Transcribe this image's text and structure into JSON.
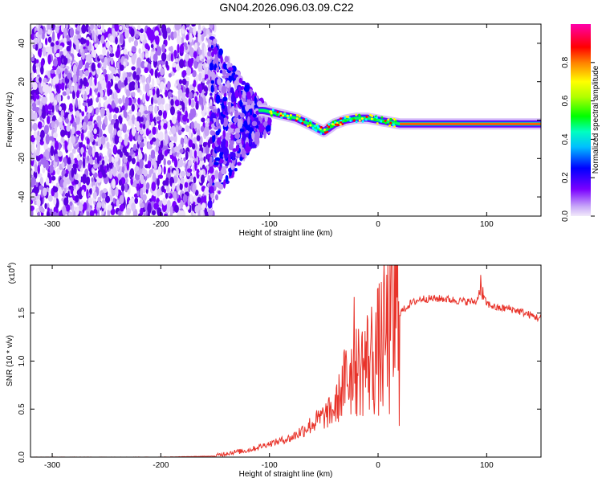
{
  "title": "GN04.2026.096.03.09.C22",
  "chart_data": [
    {
      "type": "heatmap",
      "name": "spectrogram",
      "xlabel": "Height of straight line (km)",
      "ylabel": "Frequency (Hz)",
      "xlim": [
        -320,
        150
      ],
      "ylim": [
        -50,
        50
      ],
      "x_ticks": [
        -300,
        -200,
        -100,
        0,
        100
      ],
      "y_ticks": [
        -40,
        -20,
        0,
        20,
        40
      ],
      "colorbar": {
        "label": "Normalized spectral amplitude",
        "range": [
          0,
          1
        ],
        "ticks": [
          0.0,
          0.2,
          0.4,
          0.6,
          0.8
        ],
        "colors": [
          "#f2eafa",
          "#7a00ff",
          "#0000ff",
          "#00ffff",
          "#00ff00",
          "#ffff00",
          "#ff0000",
          "#ff00aa"
        ]
      },
      "ridge": {
        "x": [
          -105,
          -90,
          -75,
          -60,
          -50,
          -40,
          -30,
          -20,
          -10,
          0,
          10,
          20,
          40,
          60,
          80,
          100,
          120,
          150
        ],
        "y": [
          5,
          3,
          1,
          -3,
          -6,
          -2,
          0,
          1,
          1,
          0,
          -1,
          -2,
          -2,
          -2,
          -2,
          -2,
          -2,
          -2
        ]
      }
    },
    {
      "type": "line",
      "name": "snr",
      "xlabel": "Height of straight line (km)",
      "ylabel": "SNR (10 * v/v)",
      "y_multiplier": "(x10",
      "y_multiplier_exp": "4",
      "y_multiplier_close": ")",
      "xlim": [
        -320,
        150
      ],
      "ylim": [
        0,
        2
      ],
      "x_ticks": [
        -300,
        -200,
        -100,
        0,
        100
      ],
      "y_ticks": [
        0.0,
        0.5,
        1.0,
        1.5
      ],
      "color": "#e8332a",
      "x": [
        -320,
        -200,
        -150,
        -140,
        -120,
        -100,
        -80,
        -60,
        -40,
        -30,
        -20,
        -10,
        0,
        10,
        20,
        30,
        40,
        60,
        80,
        90,
        95,
        100,
        110,
        120,
        130,
        140,
        150
      ],
      "y": [
        0.0,
        0.0,
        0.01,
        0.04,
        0.07,
        0.14,
        0.2,
        0.35,
        0.5,
        0.8,
        0.9,
        1.0,
        1.1,
        1.3,
        1.5,
        1.6,
        1.65,
        1.65,
        1.62,
        1.62,
        1.7,
        1.6,
        1.55,
        1.55,
        1.52,
        1.48,
        1.44
      ]
    }
  ]
}
